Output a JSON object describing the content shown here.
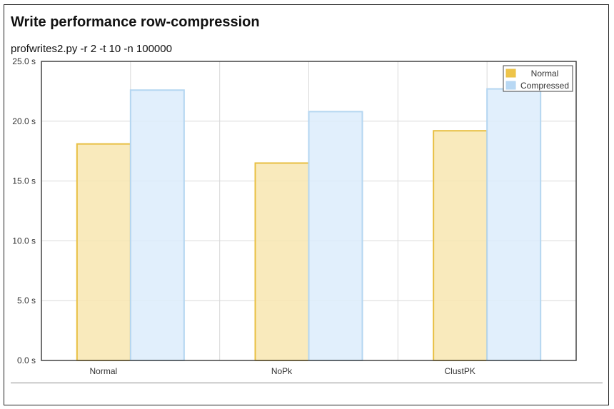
{
  "page": {
    "title": "Write performance row-compression",
    "subtitle": "profwrites2.py -r 2 -t 10 -n 100000"
  },
  "chart_data": {
    "type": "bar",
    "categories": [
      "Normal",
      "NoPk",
      "ClustPK"
    ],
    "series": [
      {
        "name": "Normal",
        "values": [
          18.1,
          16.5,
          19.2
        ]
      },
      {
        "name": "Compressed",
        "values": [
          22.6,
          20.8,
          22.7
        ]
      }
    ],
    "ylim": [
      0,
      25
    ],
    "yticks": [
      0,
      5,
      10,
      15,
      20,
      25
    ],
    "ytick_labels": [
      "0.0 s",
      "5.0 s",
      "10.0 s",
      "15.0 s",
      "20.0 s",
      "25.0 s"
    ],
    "grid": true,
    "legend_position": "top-right",
    "colors": {
      "Normal": {
        "fill": "#f8e6b0",
        "stroke": "#e8bf42",
        "swatch": "#eec44a"
      },
      "Compressed": {
        "fill": "#dcecfb",
        "stroke": "#b4d6f1",
        "swatch": "#b8d8f4"
      },
      "grid": "#d9d9d9",
      "axis": "#444444",
      "text": "#333333"
    }
  }
}
